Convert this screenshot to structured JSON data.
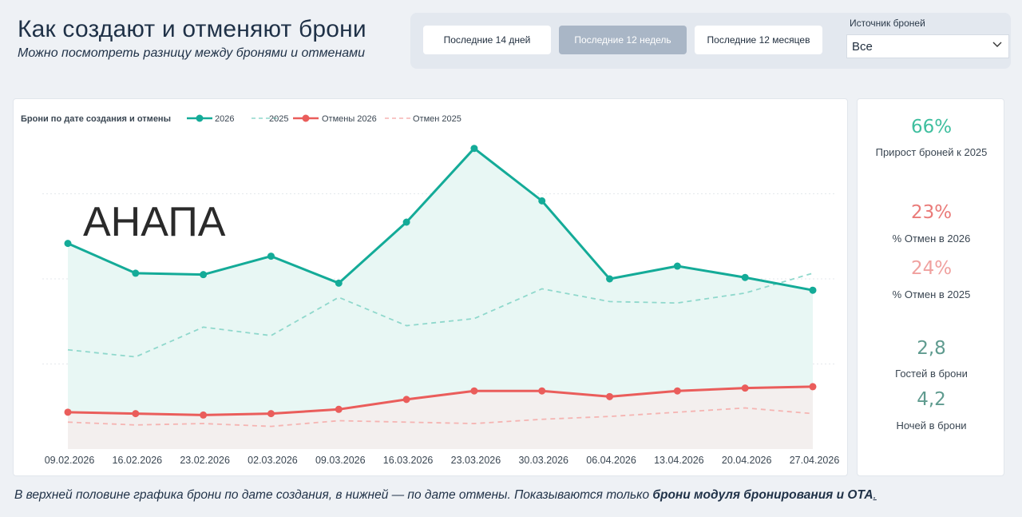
{
  "header": {
    "title": "Как создают и отменяют брони",
    "subtitle": "Можно посмотреть разницу между бронями и отменами"
  },
  "filters": {
    "periods": [
      {
        "label": "Последние 14 дней",
        "active": false
      },
      {
        "label": "Последние 12 недель",
        "active": true
      },
      {
        "label": "Последние 12 месяцев",
        "active": false
      }
    ],
    "source_label": "Источник броней",
    "source_value": "Все"
  },
  "overlay_label": "АНАПА",
  "chart_data": {
    "type": "line",
    "title": "Брони по дате создания и отмены",
    "categories": [
      "09.02.2026",
      "16.02.2026",
      "23.02.2026",
      "02.03.2026",
      "09.03.2026",
      "16.03.2026",
      "23.03.2026",
      "30.03.2026",
      "06.04.2026",
      "13.04.2026",
      "20.04.2026",
      "27.04.2026"
    ],
    "ylim": [
      0,
      100
    ],
    "grid": true,
    "legend_position": "top-left",
    "series": [
      {
        "name": "2026",
        "color": "#14ab98",
        "style": "solid",
        "markers": true,
        "area": true,
        "values": [
          72.5,
          62,
          61.5,
          68,
          58.5,
          80,
          106,
          87.5,
          60,
          64.5,
          60.5,
          56
        ]
      },
      {
        "name": "2025",
        "color": "#8fd8cc",
        "style": "dashed",
        "markers": false,
        "area": false,
        "values": [
          35,
          32.5,
          43,
          40,
          53.5,
          43.5,
          46,
          56.5,
          52,
          51.5,
          55,
          62
        ]
      },
      {
        "name": "Отмены 2026",
        "color": "#ea5d5b",
        "style": "solid",
        "markers": true,
        "area": true,
        "values": [
          13,
          12.5,
          12,
          12.5,
          14,
          17.5,
          20.5,
          20.5,
          18.5,
          20.5,
          21.5,
          22
        ]
      },
      {
        "name": "Отмен 2025",
        "color": "#f5b4b2",
        "style": "dashed",
        "markers": false,
        "area": false,
        "values": [
          9.5,
          8.5,
          9,
          8,
          10,
          9.5,
          9,
          10.5,
          11.5,
          13,
          14.5,
          12.5
        ]
      }
    ]
  },
  "kpis": [
    {
      "value": "66%",
      "label": "Прирост броней к 2025",
      "color": "#3fbf9f"
    },
    {
      "value": "23%",
      "label": "% Отмен в 2026",
      "color": "#ea7b79"
    },
    {
      "value": "24%",
      "label": "% Отмен в 2025",
      "color": "#f0a19f"
    },
    {
      "value": "2,8",
      "label": "Гостей в брони",
      "color": "#5f9b8f"
    },
    {
      "value": "4,2",
      "label": "Ночей в брони",
      "color": "#5f9b8f"
    }
  ],
  "footnote": {
    "text": "В верхней половине графика брони по дате создания, в нижней — по дате отмены. Показываются только ",
    "bold": "брони модуля бронирования и ОТА",
    "end": "."
  }
}
